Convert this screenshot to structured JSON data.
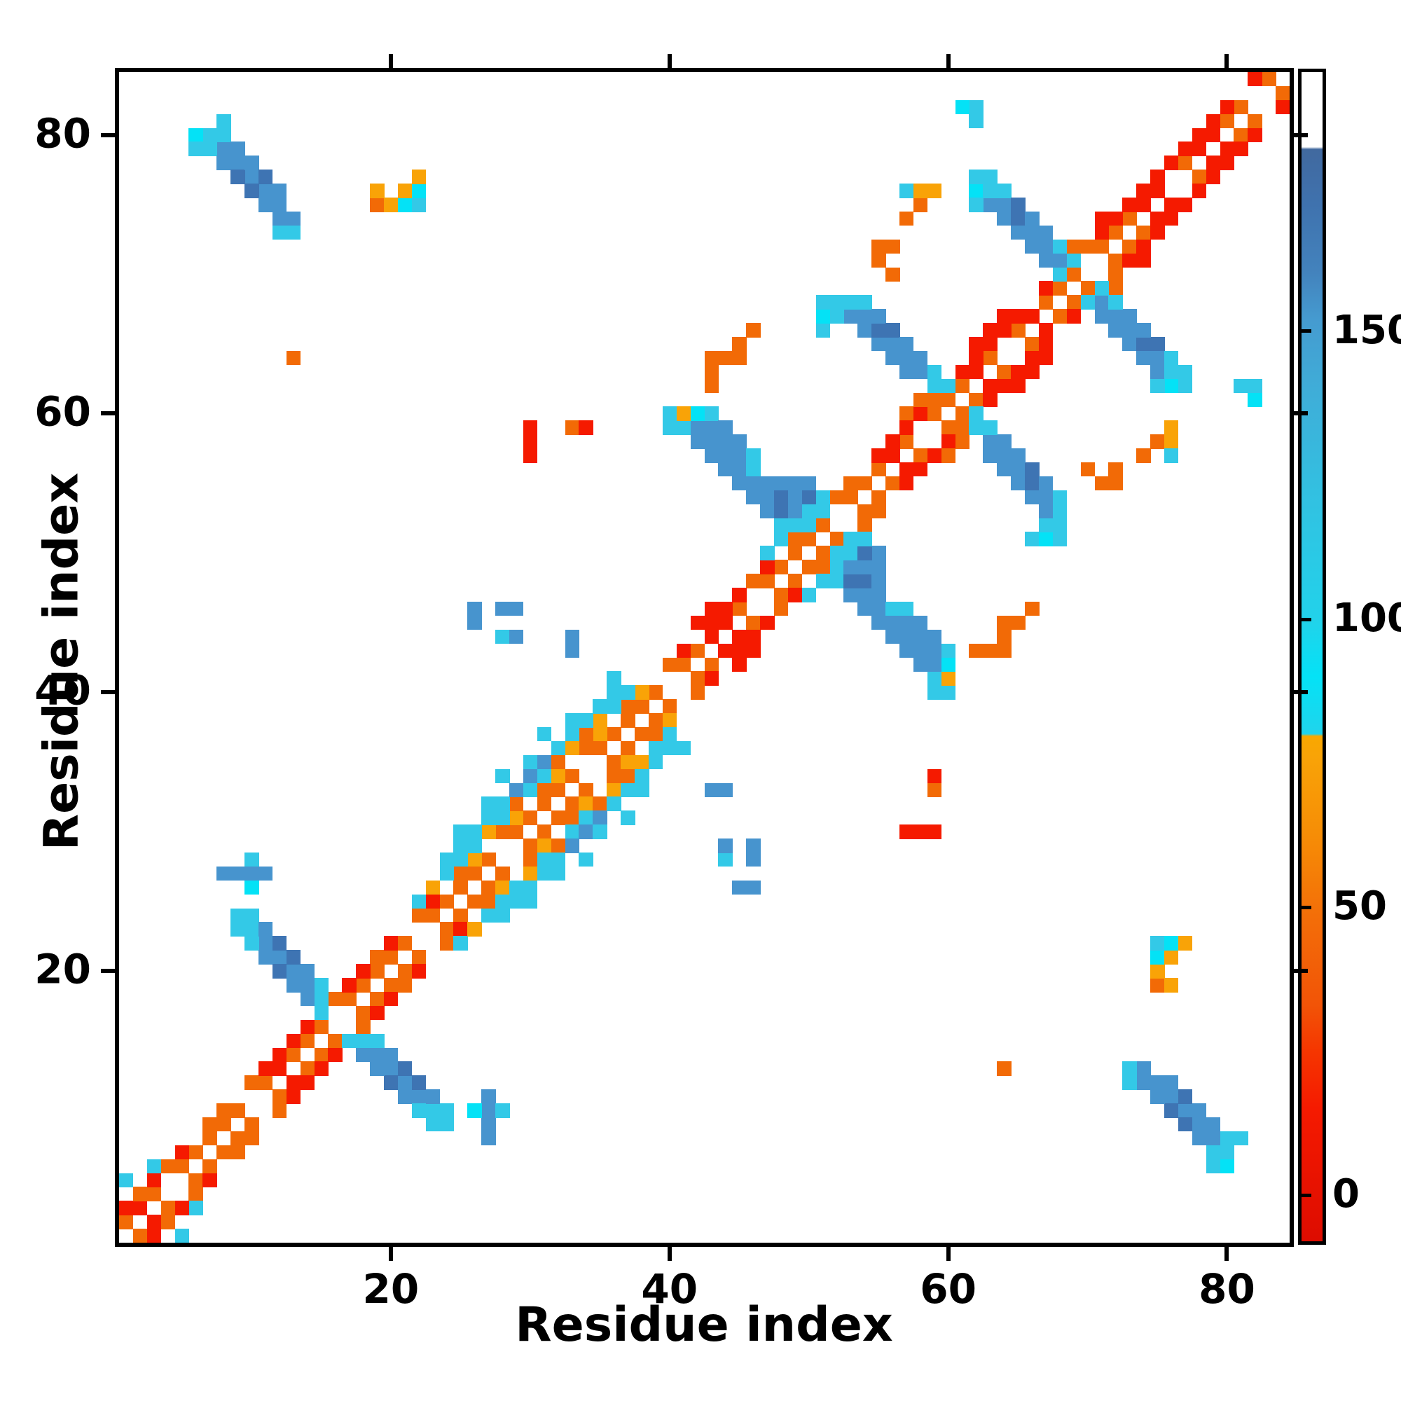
{
  "figure": {
    "x_axis_title": "Residue index",
    "y_axis_title": "Residue index",
    "x_tick_labels": [
      "20",
      "40",
      "60",
      "80"
    ],
    "y_tick_labels": [
      "20",
      "40",
      "60",
      "80"
    ],
    "colorbar_tick_labels": [
      "0",
      "50",
      "100",
      "150"
    ],
    "background_color": "#ffffff",
    "frame_color": "#000000"
  },
  "chart_data": {
    "type": "heatmap",
    "title": "",
    "xlabel": "Residue index",
    "ylabel": "Residue index",
    "x_range": [
      0.5,
      84.5
    ],
    "y_range": [
      0.5,
      84.5
    ],
    "x_ticks": [
      20,
      40,
      60,
      80
    ],
    "y_ticks": [
      20,
      40,
      60,
      80
    ],
    "n_residues": 84,
    "symmetric": true,
    "grid": false,
    "legend_position": "right-colorbar",
    "colorbar": {
      "ticks": [
        0,
        50,
        100,
        150
      ],
      "value_range": [
        -8,
        195
      ],
      "stops_bottom_to_top": [
        [
          0,
          "#dd0c00"
        ],
        [
          11.3,
          "#f51a00"
        ],
        [
          16.3,
          "#f53600"
        ],
        [
          20.2,
          "#f25407"
        ],
        [
          27.6,
          "#f36d08"
        ],
        [
          34.5,
          "#f68c06"
        ],
        [
          41.4,
          "#f9a307"
        ],
        [
          43.2,
          "#f9a800"
        ],
        [
          43.4,
          "#20d4ec"
        ],
        [
          48.3,
          "#04e2f6"
        ],
        [
          53.2,
          "#22d2ea"
        ],
        [
          63.1,
          "#31c2e2"
        ],
        [
          72.9,
          "#3fadd8"
        ],
        [
          78.8,
          "#459bd0"
        ],
        [
          82.8,
          "#4383bd"
        ],
        [
          88.7,
          "#3f72ae"
        ],
        [
          93.4,
          "#41699f"
        ],
        [
          93.6,
          "#ffffff"
        ],
        [
          100,
          "#ffffff"
        ]
      ]
    },
    "palette": {
      "R": "#f51a00",
      "O": "#f26a06",
      "A": "#f9a307",
      "C": "#33c9e7",
      "Y": "#04e2f6",
      "B": "#4794ce",
      "D": "#3e74b3"
    },
    "cells_upper_triangle": [
      "1,2,O",
      "2,3,R",
      "3,4,O",
      "5,6,O",
      "6,7,O",
      "7,8,O",
      "8,9,O",
      "9,10,O",
      "11,12,O",
      "12,13,R",
      "13,14,O",
      "14,15,O",
      "15,16,O",
      "17,18,O",
      "18,19,O",
      "19,20,O",
      "20,21,O",
      "21,22,O",
      "23,24,O",
      "24,25,O",
      "25,26,O",
      "26,27,O",
      "27,28,O",
      "29,30,O",
      "30,31,O",
      "31,32,O",
      "32,33,O",
      "33,34,O",
      "35,36,O",
      "36,37,O",
      "37,38,O",
      "38,39,O",
      "39,40,O",
      "41,42,O",
      "42,43,O",
      "43,44,R",
      "44,45,R",
      "45,46,O",
      "47,48,O",
      "48,49,O",
      "49,50,O",
      "50,51,O",
      "51,52,O",
      "53,54,O",
      "54,55,O",
      "55,56,O",
      "56,57,R",
      "57,58,O",
      "59,60,O",
      "60,61,O",
      "61,62,O",
      "62,63,R",
      "63,64,O",
      "65,66,O",
      "66,67,O",
      "67,68,O",
      "68,69,O",
      "69,70,O",
      "71,72,O",
      "72,73,O",
      "73,74,O",
      "74,75,R",
      "75,76,R",
      "77,78,O",
      "78,79,R",
      "79,80,R",
      "80,81,O",
      "81,82,O",
      "83,84,O",
      "1,3,R",
      "2,4,O",
      "4,6,O",
      "5,7,R",
      "7,9,O",
      "8,10,O",
      "10,12,O",
      "11,13,R",
      "13,15,O",
      "14,16,R",
      "16,18,O",
      "17,19,R",
      "19,21,O",
      "20,22,R",
      "22,24,O",
      "23,25,R",
      "25,27,O",
      "26,28,A",
      "28,30,O",
      "29,31,A",
      "31,33,O",
      "32,34,A",
      "34,36,O",
      "35,37,A",
      "37,39,O",
      "38,40,A",
      "40,42,O",
      "41,43,R",
      "43,45,O",
      "44,46,R",
      "46,48,O",
      "47,49,R",
      "49,51,O",
      "50,52,R",
      "52,54,O",
      "53,55,O",
      "55,57,R",
      "56,58,R",
      "58,60,R",
      "59,61,O",
      "61,63,R",
      "62,64,R",
      "64,66,R",
      "65,67,R",
      "67,69,R",
      "68,70,O",
      "70,72,O",
      "71,73,R",
      "73,75,R",
      "74,76,R",
      "76,78,R",
      "77,79,R",
      "79,81,R",
      "80,82,R",
      "82,84,O",
      "22,25,C",
      "23,26,A",
      "24,27,C",
      "25,28,C",
      "26,29,C",
      "27,30,A",
      "28,31,C",
      "29,32,O",
      "30,33,C",
      "31,34,C",
      "32,35,O",
      "33,36,A",
      "34,37,O",
      "35,38,A",
      "36,39,C",
      "37,40,C",
      "42,45,R",
      "43,46,R",
      "47,50,C",
      "48,51,C",
      "49,52,C",
      "57,60,O",
      "58,61,O",
      "62,65,R",
      "63,66,R",
      "64,67,R",
      "68,71,O",
      "69,72,O",
      "71,74,R",
      "24,28,C",
      "25,29,C",
      "26,30,C",
      "27,31,C",
      "28,32,C",
      "29,33,B",
      "30,34,B",
      "31,35,B",
      "32,36,C",
      "33,37,C",
      "34,38,C",
      "35,39,C",
      "36,40,C",
      "25,30,C",
      "27,32,C",
      "30,35,C",
      "33,38,C",
      "36,41,C",
      "28,34,C",
      "31,37,C",
      "9,24,C",
      "10,23,C",
      "11,22,B",
      "12,21,B",
      "13,20,B",
      "14,19,B",
      "15,18,C",
      "9,23,C",
      "10,22,C",
      "11,21,B",
      "12,20,D",
      "13,19,B",
      "14,18,B",
      "15,17,C",
      "10,24,C",
      "11,23,B",
      "12,22,D",
      "13,21,D",
      "14,20,B",
      "15,19,C",
      "16,18,O",
      "8,27,B",
      "9,27,B",
      "10,27,B",
      "11,27,B",
      "10,28,C",
      "10,26,Y",
      "40,60,C",
      "41,59,C",
      "42,58,B",
      "43,57,B",
      "44,56,B",
      "45,55,B",
      "46,54,B",
      "47,53,B",
      "48,52,C",
      "41,60,A",
      "42,59,B",
      "43,58,B",
      "44,57,B",
      "45,56,B",
      "46,55,B",
      "47,54,B",
      "48,53,D",
      "42,60,Y",
      "43,59,B",
      "44,58,B",
      "45,57,B",
      "46,56,C",
      "47,55,B",
      "48,54,D",
      "49,53,B",
      "50,52,C",
      "43,60,C",
      "44,59,B",
      "45,58,B",
      "46,57,C",
      "48,55,B",
      "49,54,B",
      "50,53,C",
      "40,59,C",
      "49,55,B",
      "50,55,B",
      "50,54,D",
      "51,53,C",
      "51,54,C",
      "51,66,C",
      "51,67,Y",
      "51,68,C",
      "52,68,C",
      "53,67,B",
      "54,66,B",
      "55,65,B",
      "56,64,B",
      "57,63,B",
      "53,68,C",
      "54,67,B",
      "55,66,D",
      "56,65,B",
      "57,64,B",
      "58,63,B",
      "59,62,C",
      "54,68,C",
      "55,67,B",
      "56,66,D",
      "57,65,B",
      "58,64,B",
      "59,63,C",
      "60,62,C",
      "52,67,C",
      "62,76,Y",
      "63,75,B",
      "64,74,B",
      "65,73,B",
      "66,72,B",
      "67,71,B",
      "68,70,C",
      "62,77,C",
      "63,76,C",
      "64,75,B",
      "65,74,D",
      "66,73,B",
      "67,72,B",
      "68,71,B",
      "63,77,C",
      "64,76,C",
      "65,75,D",
      "66,74,B",
      "67,73,B",
      "68,72,C",
      "62,75,C",
      "69,71,C",
      "7,80,C",
      "8,79,B",
      "9,78,B",
      "10,77,B",
      "11,76,B",
      "12,75,B",
      "13,74,B",
      "6,80,Y",
      "7,79,C",
      "8,78,B",
      "9,77,D",
      "10,76,D",
      "11,75,B",
      "12,74,B",
      "13,73,C",
      "8,80,C",
      "9,79,B",
      "10,78,B",
      "11,77,D",
      "12,76,B",
      "6,79,C",
      "12,73,C",
      "8,81,C",
      "19,75,O",
      "19,76,A",
      "20,75,A",
      "21,75,Y",
      "21,76,A",
      "22,75,C",
      "22,76,Y",
      "22,77,A",
      "55,72,O",
      "56,72,O",
      "56,70,O",
      "57,74,O",
      "58,75,O",
      "58,76,A",
      "59,76,A",
      "57,76,C",
      "55,71,O",
      "46,66,O",
      "45,65,O",
      "43,64,O",
      "44,64,O",
      "45,64,O",
      "43,63,O",
      "43,62,O",
      "30,57,R",
      "30,58,R",
      "30,59,R",
      "33,59,O",
      "34,59,R",
      "13,64,O",
      "26,45,B",
      "26,46,B",
      "28,46,B",
      "29,46,B",
      "28,44,C",
      "29,44,B",
      "33,43,B",
      "33,44,B",
      "62,81,C",
      "62,82,C",
      "61,82,Y",
      "3,6,C",
      "1,5,C",
      "43,45,R",
      "44,46,R",
      "43,46,R",
      "45,47,R",
      "44,45,R",
      "55,57,R",
      "56,58,R",
      "57,59,R",
      "62,64,R",
      "63,65,R",
      "64,66,R",
      "65,67,R",
      "62,63,R",
      "66,67,R",
      "71,73,R",
      "72,74,R",
      "73,75,R",
      "74,76,R",
      "75,77,R",
      "76,78,R",
      "77,79,R",
      "78,80,R",
      "80,82,R",
      "82,84,R",
      "1,3,R",
      "3,5,R",
      "11,13,R",
      "12,14,R",
      "13,15,R",
      "17,19,R",
      "18,20,R",
      "20,22,R",
      "23,25,R"
    ]
  }
}
